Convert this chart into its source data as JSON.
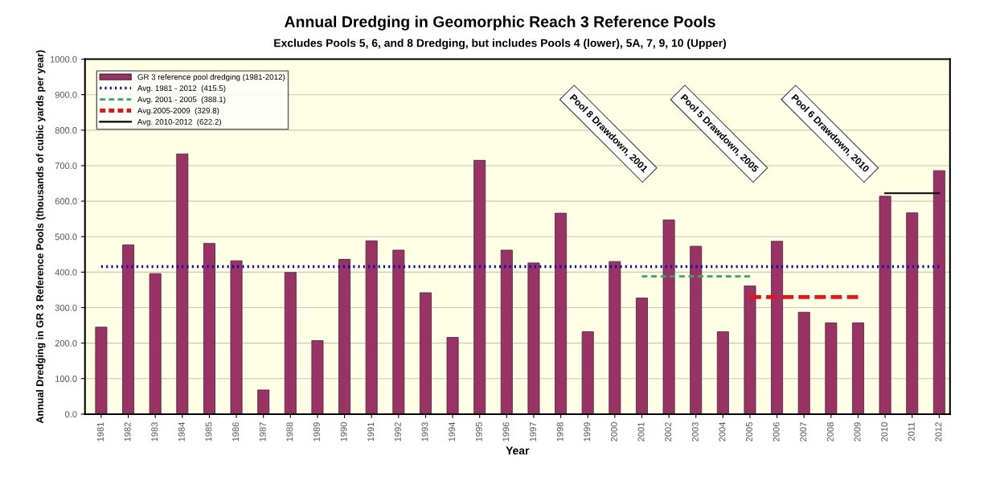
{
  "chart_data": {
    "type": "bar",
    "title": "Annual Dredging in Geomorphic Reach 3 Reference Pools",
    "subtitle": "Excludes Pools 5, 6, and 8 Dredging, but includes Pools 4 (lower), 5A, 7, 9, 10 (Upper)",
    "xlabel": "Year",
    "ylabel": "Annual Dredging in GR 3 Reference Pools (thousands of cubic yards per year)",
    "categories": [
      "1981",
      "1982",
      "1983",
      "1984",
      "1985",
      "1986",
      "1987",
      "1988",
      "1989",
      "1990",
      "1991",
      "1992",
      "1993",
      "1994",
      "1995",
      "1996",
      "1997",
      "1998",
      "1999",
      "2000",
      "2001",
      "2002",
      "2003",
      "2004",
      "2005",
      "2006",
      "2007",
      "2008",
      "2009",
      "2010",
      "2011",
      "2012"
    ],
    "series": [
      {
        "name": "GR 3 reference pool dredging (1981-2012)",
        "color": "#993366",
        "values": [
          245,
          477,
          396,
          733,
          481,
          432,
          68,
          399,
          207,
          436,
          488,
          462,
          342,
          216,
          715,
          462,
          426,
          566,
          232,
          430,
          327,
          547,
          473,
          232,
          361,
          487,
          287,
          257,
          257,
          614,
          567,
          686
        ]
      },
      {
        "name": "Avg. 1981 - 2012  (415.5)",
        "type": "line",
        "color": "#0000cc",
        "line_style": "dotted",
        "values": [
          415.5,
          415.5,
          415.5,
          415.5,
          415.5,
          415.5,
          415.5,
          415.5,
          415.5,
          415.5,
          415.5,
          415.5,
          415.5,
          415.5,
          415.5,
          415.5,
          415.5,
          415.5,
          415.5,
          415.5,
          415.5,
          415.5,
          415.5,
          415.5,
          415.5,
          415.5,
          415.5,
          415.5,
          415.5,
          415.5,
          415.5,
          415.5
        ]
      },
      {
        "name": "Avg. 2001 - 2005  (388.1)",
        "type": "line",
        "color": "#33aa66",
        "line_style": "dashed",
        "values": [
          null,
          null,
          null,
          null,
          null,
          null,
          null,
          null,
          null,
          null,
          null,
          null,
          null,
          null,
          null,
          null,
          null,
          null,
          null,
          null,
          388.1,
          388.1,
          388.1,
          388.1,
          388.1,
          null,
          null,
          null,
          null,
          null,
          null,
          null
        ]
      },
      {
        "name": "Avg.2005-2009  (329.8)",
        "type": "line",
        "color": "#ee1111",
        "line_style": "dashed",
        "values": [
          null,
          null,
          null,
          null,
          null,
          null,
          null,
          null,
          null,
          null,
          null,
          null,
          null,
          null,
          null,
          null,
          null,
          null,
          null,
          null,
          null,
          null,
          null,
          null,
          329.8,
          329.8,
          329.8,
          329.8,
          329.8,
          null,
          null,
          null
        ]
      },
      {
        "name": "Avg. 2010-2012  (622.2)",
        "type": "line",
        "color": "#000000",
        "line_style": "solid",
        "values": [
          null,
          null,
          null,
          null,
          null,
          null,
          null,
          null,
          null,
          null,
          null,
          null,
          null,
          null,
          null,
          null,
          null,
          null,
          null,
          null,
          null,
          null,
          null,
          null,
          null,
          null,
          null,
          null,
          null,
          622.2,
          622.2,
          622.2
        ]
      }
    ],
    "annotations": [
      "Pool 8 Drawdown, 2001",
      "Pool 5 Drawdown, 2005",
      "Pool 6 Drawdown, 2010"
    ],
    "ylim": [
      0,
      1000
    ],
    "yticks": [
      {
        "value": 0,
        "label": "0.0"
      },
      {
        "value": 100,
        "label": "100.0"
      },
      {
        "value": 200,
        "label": "200.0"
      },
      {
        "value": 300,
        "label": "300.0"
      },
      {
        "value": 400,
        "label": "400.0"
      },
      {
        "value": 500,
        "label": "500.0"
      },
      {
        "value": 600,
        "label": "600.0"
      },
      {
        "value": 700,
        "label": "700.0"
      },
      {
        "value": 800,
        "label": "800.0"
      },
      {
        "value": 900,
        "label": "900.0"
      },
      {
        "value": 1000,
        "label": "1000.0"
      }
    ],
    "grid": "y",
    "legend": "top left"
  }
}
